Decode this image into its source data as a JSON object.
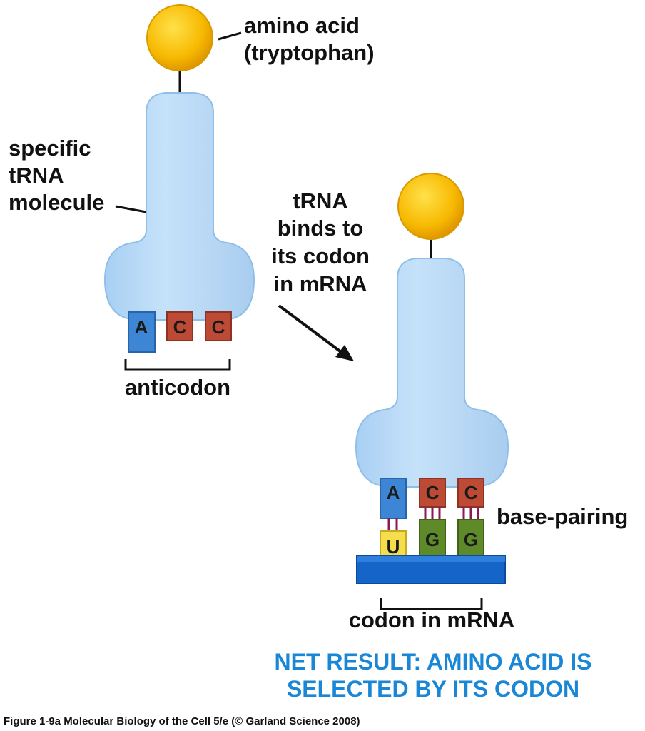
{
  "labels": {
    "amino_acid_line1": "amino acid",
    "amino_acid_line2": "(tryptophan)",
    "trna_line1": "specific",
    "trna_line2": "tRNA",
    "trna_line3": "molecule",
    "binds_line1": "tRNA",
    "binds_line2": "binds to",
    "binds_line3": "its codon",
    "binds_line4": "in mRNA",
    "anticodon": "anticodon",
    "base_pairing": "base-pairing",
    "codon": "codon in mRNA"
  },
  "anticodon_bases": [
    "A",
    "C",
    "C"
  ],
  "codon_bases": [
    "U",
    "G",
    "G"
  ],
  "net_result": {
    "line1": "NET RESULT: AMINO ACID IS",
    "line2": "SELECTED BY ITS CODON"
  },
  "caption": "Figure 1-9a  Molecular Biology of the Cell 5/e (© Garland Science 2008)",
  "colors": {
    "trna": "#bcdcf7",
    "trna_edge": "#8fbfe8",
    "amino_acid": "#f5b400",
    "adenine": "#3d86d6",
    "cytosine": "#bd4a34",
    "uracil": "#f6dd4e",
    "guanine": "#5f8a2a",
    "mrna": "#1565c8",
    "h_bond": "#8a1a5a",
    "net_result": "#1a86d6"
  }
}
